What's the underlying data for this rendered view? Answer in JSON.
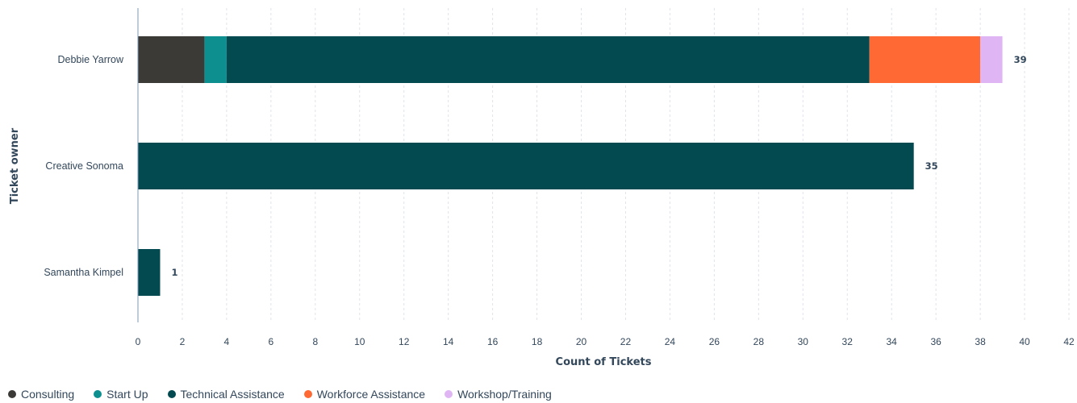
{
  "chart_data": {
    "type": "bar",
    "orientation": "horizontal",
    "stacked": true,
    "categories": [
      "Debbie Yarrow",
      "Creative Sonoma",
      "Samantha Kimpel"
    ],
    "series": [
      {
        "name": "Consulting",
        "color": "#3b3a37",
        "values": [
          3,
          0,
          0
        ]
      },
      {
        "name": "Start Up",
        "color": "#0e8f8f",
        "values": [
          1,
          0,
          0
        ]
      },
      {
        "name": "Technical Assistance",
        "color": "#024a4f",
        "values": [
          29,
          35,
          1
        ]
      },
      {
        "name": "Workforce Assistance",
        "color": "#ff6933",
        "values": [
          5,
          0,
          0
        ]
      },
      {
        "name": "Workshop/Training",
        "color": "#dfb6f3",
        "values": [
          1,
          0,
          0
        ]
      }
    ],
    "totals": [
      "39",
      "35",
      "1"
    ],
    "xlabel": "Count of Tickets",
    "ylabel": "Ticket owner",
    "xlim": [
      0,
      42
    ],
    "xticks": [
      "0",
      "2",
      "4",
      "6",
      "8",
      "10",
      "12",
      "14",
      "16",
      "18",
      "20",
      "22",
      "24",
      "26",
      "28",
      "30",
      "32",
      "34",
      "36",
      "38",
      "40",
      "42"
    ],
    "grid": true,
    "legend_position": "bottom-left"
  }
}
